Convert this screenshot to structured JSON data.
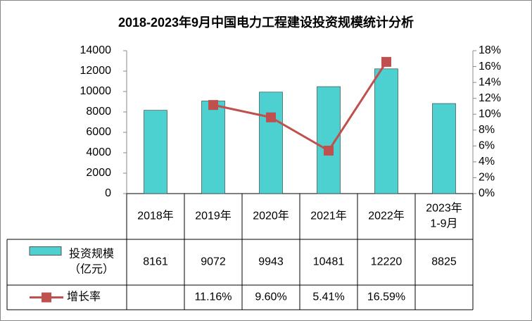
{
  "chart_data": {
    "type": "bar",
    "title": "2018-2023年9月中国电力工程建设投资规模统计分析",
    "categories": [
      "2018年",
      "2019年",
      "2020年",
      "2021年",
      "2022年",
      "2023年\n1-9月"
    ],
    "series": [
      {
        "name": "投资规模\n（亿元）",
        "type": "bar",
        "color": "#4dd0d0",
        "values": [
          8161,
          9072,
          9943,
          10481,
          12220,
          8825
        ]
      },
      {
        "name": "增长率",
        "type": "line",
        "axis": "y2",
        "color": "#c0504d",
        "values": [
          null,
          11.16,
          9.6,
          5.41,
          16.59,
          null
        ],
        "value_labels": [
          null,
          "11.16%",
          "9.60%",
          "5.41%",
          "16.59%",
          null
        ]
      }
    ],
    "ylim": [
      0,
      14000
    ],
    "yticks": [
      0,
      2000,
      4000,
      6000,
      8000,
      10000,
      12000,
      14000
    ],
    "y2lim": [
      0,
      18
    ],
    "y2ticks": [
      {
        "value": 0,
        "label": "0%"
      },
      {
        "value": 2,
        "label": "2%"
      },
      {
        "value": 4,
        "label": "4%"
      },
      {
        "value": 6,
        "label": "6%"
      },
      {
        "value": 8,
        "label": "8%"
      },
      {
        "value": 10,
        "label": "10%"
      },
      {
        "value": 12,
        "label": "12%"
      },
      {
        "value": 14,
        "label": "14%"
      },
      {
        "value": 16,
        "label": "16%"
      },
      {
        "value": 18,
        "label": "18%"
      }
    ]
  }
}
